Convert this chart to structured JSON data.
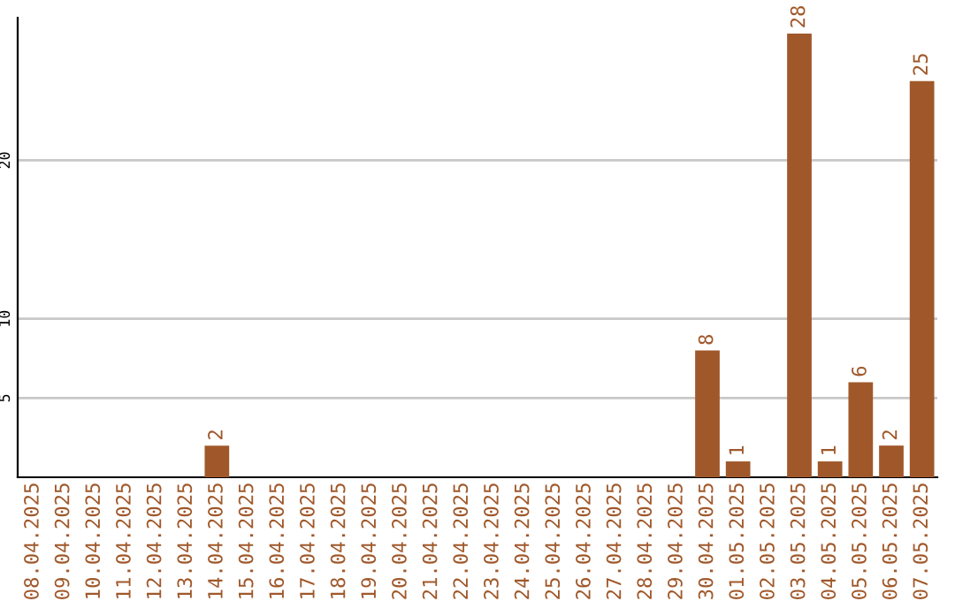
{
  "chart_data": {
    "type": "bar",
    "categories": [
      "08.04.2025",
      "09.04.2025",
      "10.04.2025",
      "11.04.2025",
      "12.04.2025",
      "13.04.2025",
      "14.04.2025",
      "15.04.2025",
      "16.04.2025",
      "17.04.2025",
      "18.04.2025",
      "19.04.2025",
      "20.04.2025",
      "21.04.2025",
      "22.04.2025",
      "23.04.2025",
      "24.04.2025",
      "25.04.2025",
      "26.04.2025",
      "27.04.2025",
      "28.04.2025",
      "29.04.2025",
      "30.04.2025",
      "01.05.2025",
      "02.05.2025",
      "03.05.2025",
      "04.05.2025",
      "05.05.2025",
      "06.05.2025",
      "07.05.2025"
    ],
    "values": [
      0,
      0,
      0,
      0,
      0,
      0,
      2,
      0,
      0,
      0,
      0,
      0,
      0,
      0,
      0,
      0,
      0,
      0,
      0,
      0,
      0,
      0,
      8,
      1,
      0,
      28,
      1,
      6,
      2,
      25
    ],
    "value_labels": [
      null,
      null,
      null,
      null,
      null,
      null,
      "2",
      null,
      null,
      null,
      null,
      null,
      null,
      null,
      null,
      null,
      null,
      null,
      null,
      null,
      null,
      null,
      "8",
      "1",
      null,
      "28",
      "1",
      "6",
      "2",
      "25"
    ],
    "color": "#a0582a",
    "ylim": [
      0,
      29
    ],
    "yticks": [
      5,
      10,
      20
    ],
    "grid": "y"
  }
}
